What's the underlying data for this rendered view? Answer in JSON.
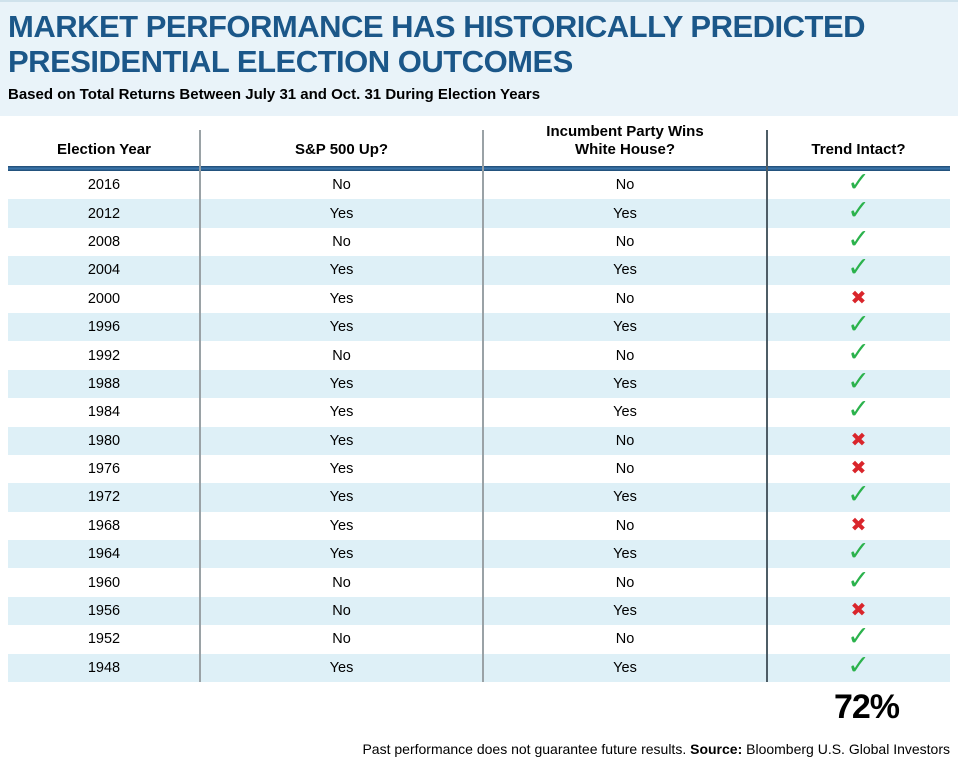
{
  "header": {
    "title_line1": "MARKET PERFORMANCE HAS HISTORICALLY PREDICTED",
    "title_line2": "PRESIDENTIAL ELECTION OUTCOMES",
    "subtitle": "Based on Total Returns Between July 31 and Oct. 31 During Election Years"
  },
  "table": {
    "columns": [
      "Election Year",
      "S&P 500 Up?",
      "Incumbent Party Wins\nWhite House?",
      "Trend Intact?"
    ],
    "rows": [
      {
        "year": "2016",
        "sp500_up": "No",
        "incumbent_wins": "No",
        "trend": "check"
      },
      {
        "year": "2012",
        "sp500_up": "Yes",
        "incumbent_wins": "Yes",
        "trend": "check"
      },
      {
        "year": "2008",
        "sp500_up": "No",
        "incumbent_wins": "No",
        "trend": "check"
      },
      {
        "year": "2004",
        "sp500_up": "Yes",
        "incumbent_wins": "Yes",
        "trend": "check"
      },
      {
        "year": "2000",
        "sp500_up": "Yes",
        "incumbent_wins": "No",
        "trend": "x"
      },
      {
        "year": "1996",
        "sp500_up": "Yes",
        "incumbent_wins": "Yes",
        "trend": "check"
      },
      {
        "year": "1992",
        "sp500_up": "No",
        "incumbent_wins": "No",
        "trend": "check"
      },
      {
        "year": "1988",
        "sp500_up": "Yes",
        "incumbent_wins": "Yes",
        "trend": "check"
      },
      {
        "year": "1984",
        "sp500_up": "Yes",
        "incumbent_wins": "Yes",
        "trend": "check"
      },
      {
        "year": "1980",
        "sp500_up": "Yes",
        "incumbent_wins": "No",
        "trend": "x"
      },
      {
        "year": "1976",
        "sp500_up": "Yes",
        "incumbent_wins": "No",
        "trend": "x"
      },
      {
        "year": "1972",
        "sp500_up": "Yes",
        "incumbent_wins": "Yes",
        "trend": "check"
      },
      {
        "year": "1968",
        "sp500_up": "Yes",
        "incumbent_wins": "No",
        "trend": "x"
      },
      {
        "year": "1964",
        "sp500_up": "Yes",
        "incumbent_wins": "Yes",
        "trend": "check"
      },
      {
        "year": "1960",
        "sp500_up": "No",
        "incumbent_wins": "No",
        "trend": "check"
      },
      {
        "year": "1956",
        "sp500_up": "No",
        "incumbent_wins": "Yes",
        "trend": "x"
      },
      {
        "year": "1952",
        "sp500_up": "No",
        "incumbent_wins": "No",
        "trend": "check"
      },
      {
        "year": "1948",
        "sp500_up": "Yes",
        "incumbent_wins": "Yes",
        "trend": "check"
      }
    ]
  },
  "icons": {
    "check": "✓",
    "x": "✖"
  },
  "summary": {
    "trend_accuracy": "72%"
  },
  "footer": {
    "disclaimer": "Past performance does not guarantee future results. ",
    "source_label": "Source:",
    "source_text": " Bloomberg U.S. Global Investors"
  },
  "colors": {
    "title_blue": "#1b5789",
    "hero_background": "#e9f3f9",
    "row_stripe": "#def0f7",
    "header_rule_blue": "#2e6b9e",
    "divider_gray": "#9aa2a6",
    "divider_dark": "#4e5d66",
    "check_green": "#2bb24c",
    "x_red": "#d9252b"
  },
  "chart_data": {
    "type": "table",
    "title": "MARKET PERFORMANCE HAS HISTORICALLY PREDICTED PRESIDENTIAL ELECTION OUTCOMES",
    "subtitle": "Based on Total Returns Between July 31 and Oct. 31 During Election Years",
    "columns": [
      "Election Year",
      "S&P 500 Up?",
      "Incumbent Party Wins White House?",
      "Trend Intact?"
    ],
    "rows": [
      [
        "2016",
        "No",
        "No",
        "intact"
      ],
      [
        "2012",
        "Yes",
        "Yes",
        "intact"
      ],
      [
        "2008",
        "No",
        "No",
        "intact"
      ],
      [
        "2004",
        "Yes",
        "Yes",
        "intact"
      ],
      [
        "2000",
        "Yes",
        "No",
        "broken"
      ],
      [
        "1996",
        "Yes",
        "Yes",
        "intact"
      ],
      [
        "1992",
        "No",
        "No",
        "intact"
      ],
      [
        "1988",
        "Yes",
        "Yes",
        "intact"
      ],
      [
        "1984",
        "Yes",
        "Yes",
        "intact"
      ],
      [
        "1980",
        "Yes",
        "No",
        "broken"
      ],
      [
        "1976",
        "Yes",
        "No",
        "broken"
      ],
      [
        "1972",
        "Yes",
        "Yes",
        "intact"
      ],
      [
        "1968",
        "Yes",
        "No",
        "broken"
      ],
      [
        "1964",
        "Yes",
        "Yes",
        "intact"
      ],
      [
        "1960",
        "No",
        "No",
        "intact"
      ],
      [
        "1956",
        "No",
        "Yes",
        "broken"
      ],
      [
        "1952",
        "No",
        "No",
        "intact"
      ],
      [
        "1948",
        "Yes",
        "Yes",
        "intact"
      ]
    ],
    "summary_value": "72%",
    "source": "Bloomberg U.S. Global Investors"
  }
}
